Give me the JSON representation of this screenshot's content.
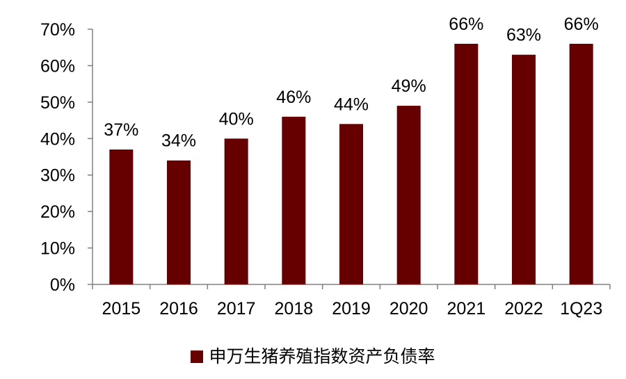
{
  "chart_data": {
    "type": "bar",
    "categories": [
      "2015",
      "2016",
      "2017",
      "2018",
      "2019",
      "2020",
      "2021",
      "2022",
      "1Q23"
    ],
    "values": [
      37,
      34,
      40,
      46,
      44,
      49,
      66,
      63,
      66
    ],
    "data_labels": [
      "37%",
      "34%",
      "40%",
      "46%",
      "44%",
      "49%",
      "66%",
      "63%",
      "66%"
    ],
    "series": [
      {
        "name": "申万生猪养殖指数资产负债率",
        "values": [
          37,
          34,
          40,
          46,
          44,
          49,
          66,
          63,
          66
        ]
      }
    ],
    "yticks": [
      "0%",
      "10%",
      "20%",
      "30%",
      "40%",
      "50%",
      "60%",
      "70%"
    ],
    "ylim": [
      0,
      70
    ],
    "grid": false,
    "legend_position": "bottom",
    "title": "",
    "xlabel": "",
    "ylabel": ""
  },
  "colors": {
    "bar": "#660000",
    "axis": "#808080"
  }
}
